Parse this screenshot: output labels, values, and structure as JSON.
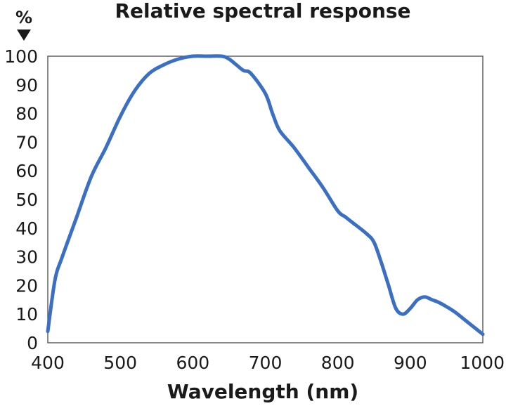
{
  "chart_data": {
    "type": "line",
    "title": "Relative spectral response",
    "xlabel": "Wavelength (nm)",
    "ylabel": "%",
    "xlim": [
      400,
      1000
    ],
    "ylim": [
      0,
      100
    ],
    "xticks": [
      400,
      500,
      600,
      700,
      800,
      900,
      1000
    ],
    "yticks": [
      0,
      10,
      20,
      30,
      40,
      50,
      60,
      70,
      80,
      90,
      100
    ],
    "grid": false,
    "line_color": "#3a6fc4",
    "series": [
      {
        "x": [
          400,
          410,
          420,
          440,
          460,
          480,
          500,
          520,
          540,
          560,
          580,
          600,
          620,
          640,
          650,
          660,
          670,
          680,
          700,
          710,
          720,
          740,
          760,
          780,
          800,
          810,
          820,
          840,
          850,
          860,
          870,
          880,
          890,
          900,
          910,
          920,
          930,
          940,
          960,
          980,
          1000
        ],
        "y": [
          4,
          22,
          30,
          44,
          58,
          68,
          79,
          88,
          94,
          97,
          99,
          100,
          100,
          100,
          99,
          97,
          95,
          94,
          87,
          80,
          74,
          68,
          61,
          54,
          46,
          44,
          42,
          38,
          35,
          28,
          20,
          12,
          10,
          12,
          15,
          16,
          15,
          14,
          11,
          7,
          3
        ]
      }
    ]
  }
}
